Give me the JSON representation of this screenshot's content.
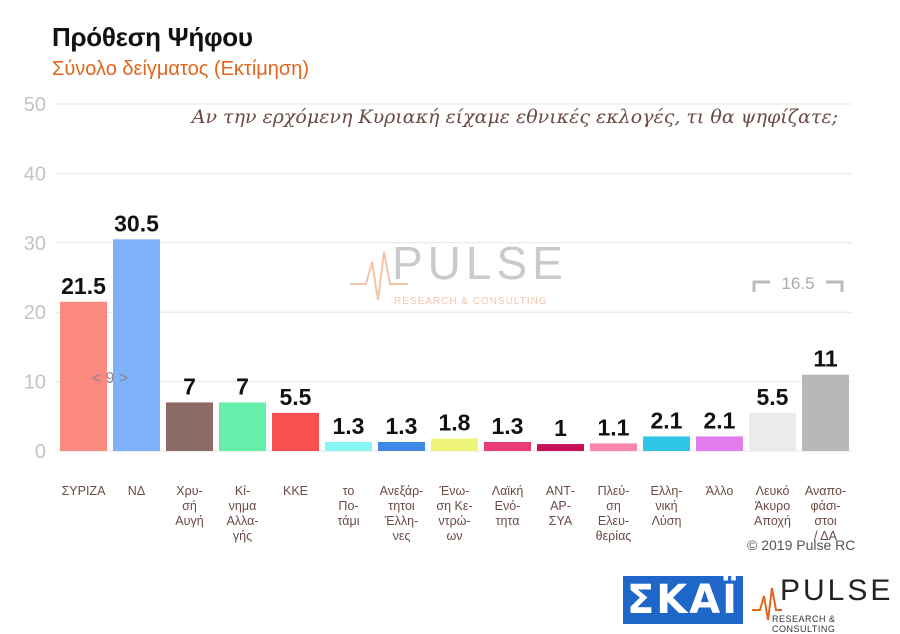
{
  "title": "Πρόθεση Ψήφου",
  "subtitle": "Σύνολο δείγματος   (Εκτίμηση)",
  "question": "Αν την ερχόμενη Κυριακή είχαμε εθνικές εκλογές, τι θα ψηφίζατε;",
  "copyright": "© 2019 Pulse RC",
  "logos": {
    "skai": "ΣΚΑΪ",
    "pulse": "PULSE",
    "pulse_sub": "RESEARCH & CONSULTING",
    "watermark": "PULSE",
    "watermark_sub": "RESEARCH & CONSULTING"
  },
  "chart_data": {
    "type": "bar",
    "ylim": [
      0,
      50
    ],
    "yticks": [
      0,
      10,
      20,
      30,
      40,
      50
    ],
    "grid": true,
    "categories": [
      "ΣΥΡΙΖΑ",
      "ΝΔ",
      "Χρυ-σή Αυγή",
      "Κί-νημα Αλλα-γής",
      "ΚΚΕ",
      "το Πο-τάμι",
      "Ανεξάρ-τητοι Έλλη-νες",
      "Ένω-ση Κε-ντρώ-ων",
      "Λαϊκή Ενό-τητα",
      "ΑΝΤ-ΑΡ-ΣΥΑ",
      "Πλεύ-ση Ελευ-θερίας",
      "Ελλη-νική Λύση",
      "Άλλο",
      "Λευκό Άκυρο Αποχή",
      "Αναπο-φάσι-στοι / ΔΑ"
    ],
    "category_lines": [
      [
        "ΣΥΡΙΖΑ"
      ],
      [
        "ΝΔ"
      ],
      [
        "Χρυ-",
        "σή",
        "Αυγή"
      ],
      [
        "Κί-",
        "νημα",
        "Αλλα-",
        "γής"
      ],
      [
        "ΚΚΕ"
      ],
      [
        "το",
        "Πο-",
        "τάμι"
      ],
      [
        "Ανεξάρ-",
        "τητοι",
        "Έλλη-",
        "νες"
      ],
      [
        "Ένω-",
        "ση Κε-",
        "ντρώ-",
        "ων"
      ],
      [
        "Λαϊκή",
        "Ενό-",
        "τητα"
      ],
      [
        "ΑΝΤ-",
        "ΑΡ-",
        "ΣΥΑ"
      ],
      [
        "Πλεύ-",
        "ση",
        "Ελευ-",
        "θερίας"
      ],
      [
        "Ελλη-",
        "νική",
        "Λύση"
      ],
      [
        "Άλλο"
      ],
      [
        "Λευκό",
        "Άκυρο",
        "Αποχή"
      ],
      [
        "Αναπο-",
        "φάσι-",
        "στοι",
        "/ ΔΑ"
      ]
    ],
    "values": [
      21.5,
      30.5,
      7,
      7,
      5.5,
      1.3,
      1.3,
      1.8,
      1.3,
      1,
      1.1,
      2.1,
      2.1,
      5.5,
      11
    ],
    "value_labels": [
      "21.5",
      "30.5",
      "7",
      "7",
      "5.5",
      "1.3",
      "1.3",
      "1.8",
      "1.3",
      "1",
      "1.1",
      "2.1",
      "2.1",
      "5.5",
      "11"
    ],
    "colors": [
      "#fa8a80",
      "#7fb0fa",
      "#8b6b63",
      "#66eeaa",
      "#f75050",
      "#88f5f3",
      "#3f88e6",
      "#eef57a",
      "#e83e75",
      "#c8105a",
      "#f786ad",
      "#2fc6e6",
      "#e37cec",
      "#ebebeb",
      "#b8b8b8"
    ],
    "annotations": [
      {
        "text": "< 9 >",
        "between": [
          "ΣΥΡΙΖΑ",
          "ΝΔ"
        ]
      },
      {
        "text": "16.5",
        "between": [
          "Λευκό Άκυρο Αποχή",
          "Αναπο-φάσι-στοι / ΔΑ"
        ]
      }
    ]
  }
}
